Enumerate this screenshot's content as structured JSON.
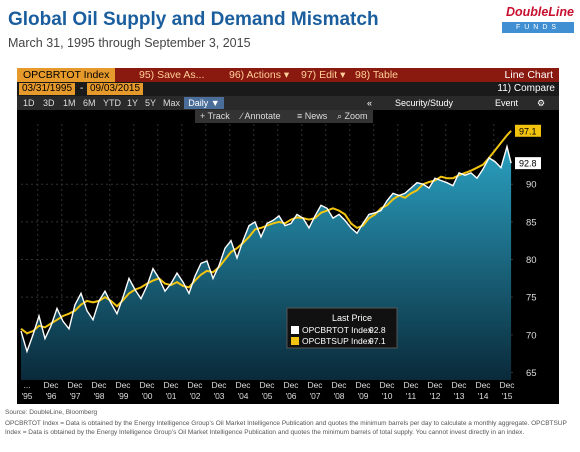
{
  "page": {
    "title": "Global Oil Supply and Demand Mismatch",
    "subtitle": "March 31, 1995 through September 3, 2015",
    "logo_name": "DoubleLine",
    "logo_sub": "FUNDS",
    "source": "Source: DoubleLine, Bloomberg",
    "footnote": "OPCBRTOT Index = Data is obtained by the Energy Intelligence Group’s Oil Market Intelligence Publication and quotes the minimum barrels per day to calculate a monthly aggregate. OPCBTSUP Index = Data is obtained by the Energy Intelligence Group’s Oil Market Intelligence Publication and quotes the minimum barrels of total supply. You cannot invest directly in an index."
  },
  "terminal": {
    "ticker": "OPCBRTOT Index",
    "save_as": "95) Save As...",
    "actions": "96) Actions ▾",
    "edit": "97) Edit ▾",
    "table": "98) Table",
    "line_chart": "Line Chart",
    "start_date": "03/31/1995",
    "dash": "-",
    "end_date": "09/03/2015",
    "compare": "11) Compare",
    "ranges": [
      "1D",
      "3D",
      "1M",
      "6M",
      "YTD",
      "1Y",
      "5Y",
      "Max"
    ],
    "daily": "Daily ▼",
    "collapse": "«",
    "security_study": "Security/Study",
    "event": "Event",
    "gear": "⚙",
    "tools": [
      "+ Track",
      "∕ Annotate",
      "≡ News",
      "⌕ Zoom"
    ]
  },
  "chart_data": {
    "type": "line",
    "title": "Global Oil Supply and Demand Mismatch",
    "subtitle": "March 31, 1995 through September 3, 2015",
    "ylim": [
      64,
      98
    ],
    "ytick_labels": [
      "65",
      "70",
      "75",
      "80",
      "85",
      "90"
    ],
    "ytick_values": [
      65,
      70,
      75,
      80,
      85,
      90
    ],
    "xlim": [
      1995.25,
      2015.75
    ],
    "xtick_top": [
      "...",
      "Dec",
      "Dec",
      "Dec",
      "Dec",
      "Dec",
      "Dec",
      "Dec",
      "Dec",
      "Dec",
      "Dec",
      "Dec",
      "Dec",
      "Dec",
      "Dec",
      "Dec",
      "Dec",
      "Dec",
      "Dec",
      "Dec",
      "Dec"
    ],
    "xtick_bottom": [
      "'95",
      "'96",
      "'97",
      "'98",
      "'99",
      "'00",
      "'01",
      "'02",
      "'03",
      "'04",
      "'05",
      "'06",
      "'07",
      "'08",
      "'09",
      "'10",
      "'11",
      "'12",
      "'13",
      "'14",
      "'15"
    ],
    "legend": {
      "title": "Last Price",
      "placement": "bottom-center"
    },
    "last_labels": [
      "97.1",
      "92.8"
    ],
    "series": [
      {
        "name": "OPCBRTOT Index",
        "last": "92.8",
        "color": "#ffffff",
        "x": [
          1995.25,
          1995.5,
          1995.75,
          1996.0,
          1996.25,
          1996.5,
          1996.75,
          1997.0,
          1997.25,
          1997.5,
          1997.75,
          1998.0,
          1998.25,
          1998.5,
          1998.75,
          1999.0,
          1999.25,
          1999.5,
          1999.75,
          2000.0,
          2000.25,
          2000.5,
          2000.75,
          2001.0,
          2001.25,
          2001.5,
          2001.75,
          2002.0,
          2002.25,
          2002.5,
          2002.75,
          2003.0,
          2003.25,
          2003.5,
          2003.75,
          2004.0,
          2004.25,
          2004.5,
          2004.75,
          2005.0,
          2005.25,
          2005.5,
          2005.75,
          2006.0,
          2006.25,
          2006.5,
          2006.75,
          2007.0,
          2007.25,
          2007.5,
          2007.75,
          2008.0,
          2008.25,
          2008.5,
          2008.75,
          2009.0,
          2009.25,
          2009.5,
          2009.75,
          2010.0,
          2010.25,
          2010.5,
          2010.75,
          2011.0,
          2011.25,
          2011.5,
          2011.75,
          2012.0,
          2012.25,
          2012.5,
          2012.75,
          2013.0,
          2013.25,
          2013.5,
          2013.75,
          2014.0,
          2014.25,
          2014.5,
          2014.75,
          2015.0,
          2015.25,
          2015.5,
          2015.67
        ],
        "values": [
          70.5,
          67.8,
          70.0,
          72.5,
          69.5,
          71.2,
          73.5,
          71.8,
          70.8,
          74.0,
          75.5,
          73.2,
          72.0,
          74.5,
          75.8,
          74.2,
          72.8,
          75.0,
          77.5,
          76.0,
          74.8,
          76.5,
          78.8,
          77.5,
          75.8,
          76.8,
          78.2,
          77.0,
          75.5,
          77.8,
          79.5,
          79.8,
          77.5,
          79.2,
          81.5,
          82.5,
          80.2,
          82.5,
          84.5,
          85.0,
          83.0,
          84.8,
          85.2,
          85.8,
          84.5,
          84.8,
          86.0,
          85.5,
          84.2,
          85.8,
          87.2,
          86.8,
          85.5,
          86.0,
          85.2,
          84.2,
          83.5,
          84.8,
          86.0,
          86.2,
          86.5,
          87.8,
          88.8,
          88.5,
          88.8,
          89.5,
          90.2,
          90.0,
          89.5,
          90.8,
          90.5,
          90.2,
          89.8,
          91.5,
          91.2,
          91.5,
          90.8,
          92.0,
          93.5,
          93.0,
          92.2,
          95.0,
          92.8
        ]
      },
      {
        "name": "OPCBTSUP Index",
        "last": "97.1",
        "color": "#f2c40f",
        "x": [
          1995.25,
          1995.5,
          1995.75,
          1996.0,
          1996.25,
          1996.5,
          1996.75,
          1997.0,
          1997.25,
          1997.5,
          1997.75,
          1998.0,
          1998.25,
          1998.5,
          1998.75,
          1999.0,
          1999.25,
          1999.5,
          1999.75,
          2000.0,
          2000.25,
          2000.5,
          2000.75,
          2001.0,
          2001.25,
          2001.5,
          2001.75,
          2002.0,
          2002.25,
          2002.5,
          2002.75,
          2003.0,
          2003.25,
          2003.5,
          2003.75,
          2004.0,
          2004.25,
          2004.5,
          2004.75,
          2005.0,
          2005.25,
          2005.5,
          2005.75,
          2006.0,
          2006.25,
          2006.5,
          2006.75,
          2007.0,
          2007.25,
          2007.5,
          2007.75,
          2008.0,
          2008.25,
          2008.5,
          2008.75,
          2009.0,
          2009.25,
          2009.5,
          2009.75,
          2010.0,
          2010.25,
          2010.5,
          2010.75,
          2011.0,
          2011.25,
          2011.5,
          2011.75,
          2012.0,
          2012.25,
          2012.5,
          2012.75,
          2013.0,
          2013.25,
          2013.5,
          2013.75,
          2014.0,
          2014.25,
          2014.5,
          2014.75,
          2015.0,
          2015.25,
          2015.5,
          2015.67
        ],
        "values": [
          70.8,
          70.2,
          70.5,
          71.2,
          71.0,
          71.5,
          72.0,
          72.5,
          72.8,
          73.2,
          74.0,
          74.5,
          74.3,
          74.5,
          75.0,
          74.5,
          73.8,
          74.6,
          75.5,
          76.0,
          76.3,
          76.8,
          77.2,
          77.5,
          76.8,
          76.6,
          77.0,
          76.5,
          76.3,
          77.2,
          78.0,
          78.5,
          78.3,
          79.0,
          80.0,
          81.0,
          81.5,
          82.2,
          83.0,
          84.0,
          84.2,
          84.5,
          84.8,
          85.0,
          84.8,
          85.3,
          85.6,
          85.5,
          85.3,
          85.5,
          86.2,
          86.5,
          86.8,
          86.5,
          86.0,
          84.8,
          84.2,
          84.5,
          85.5,
          86.0,
          86.8,
          87.2,
          88.0,
          88.5,
          88.2,
          88.8,
          89.2,
          90.0,
          90.3,
          90.5,
          91.0,
          90.8,
          90.8,
          91.2,
          91.5,
          91.8,
          92.2,
          92.6,
          93.5,
          94.5,
          95.5,
          96.5,
          97.1
        ]
      }
    ]
  }
}
